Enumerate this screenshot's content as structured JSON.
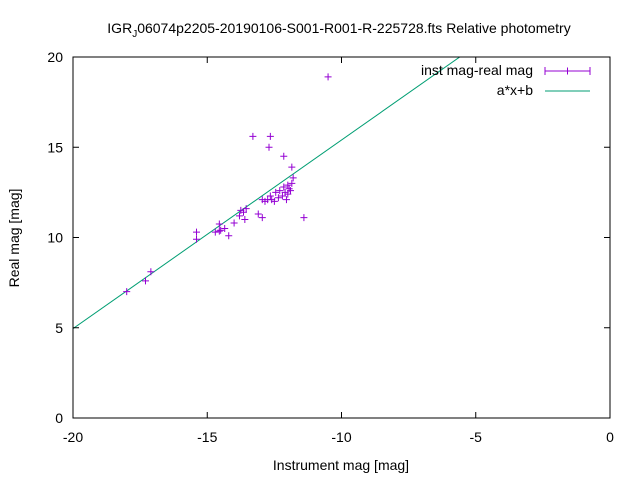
{
  "chart_data": {
    "type": "scatter",
    "title_prefix": "IGR",
    "title_subscript": "J",
    "title_suffix": "06074p2205-20190106-S001-R001-R-225728.fts Relative photometry",
    "xlabel": "Instrument mag [mag]",
    "ylabel": "Real mag [mag]",
    "xlim": [
      -20,
      0
    ],
    "ylim": [
      0,
      20
    ],
    "x_ticks": [
      -20,
      -15,
      -10,
      -5,
      0
    ],
    "y_ticks": [
      0,
      5,
      10,
      15,
      20
    ],
    "grid": false,
    "legend_position": "top-right",
    "series": [
      {
        "name": "inst mag-real mag",
        "kind": "points",
        "color": "#9400d3",
        "points": [
          [
            -18.0,
            7.0
          ],
          [
            -17.3,
            7.6
          ],
          [
            -17.1,
            8.1
          ],
          [
            -15.4,
            9.9
          ],
          [
            -15.4,
            10.3
          ],
          [
            -14.7,
            10.3
          ],
          [
            -14.55,
            10.35
          ],
          [
            -14.5,
            10.4
          ],
          [
            -14.55,
            10.75
          ],
          [
            -14.35,
            10.5
          ],
          [
            -14.2,
            10.1
          ],
          [
            -14.0,
            10.8
          ],
          [
            -13.8,
            11.2
          ],
          [
            -13.75,
            11.5
          ],
          [
            -13.65,
            11.4
          ],
          [
            -13.6,
            11.0
          ],
          [
            -13.55,
            11.6
          ],
          [
            -13.3,
            15.6
          ],
          [
            -13.1,
            11.3
          ],
          [
            -12.95,
            11.1
          ],
          [
            -12.95,
            12.1
          ],
          [
            -12.85,
            12.0
          ],
          [
            -12.75,
            12.1
          ],
          [
            -12.7,
            15.0
          ],
          [
            -12.65,
            15.6
          ],
          [
            -12.65,
            12.3
          ],
          [
            -12.6,
            12.1
          ],
          [
            -12.5,
            12.0
          ],
          [
            -12.45,
            12.5
          ],
          [
            -12.35,
            12.2
          ],
          [
            -12.3,
            12.6
          ],
          [
            -12.2,
            12.3
          ],
          [
            -12.15,
            14.5
          ],
          [
            -12.15,
            12.8
          ],
          [
            -12.1,
            12.5
          ],
          [
            -12.05,
            12.1
          ],
          [
            -12.0,
            12.4
          ],
          [
            -12.0,
            12.9
          ],
          [
            -11.95,
            12.7
          ],
          [
            -11.9,
            12.6
          ],
          [
            -11.85,
            13.0
          ],
          [
            -11.8,
            13.3
          ],
          [
            -11.85,
            13.9
          ],
          [
            -11.4,
            11.1
          ],
          [
            -10.5,
            18.9
          ]
        ]
      },
      {
        "name": "a*x+b",
        "kind": "line",
        "color": "#009e73",
        "slope": 1.045,
        "intercept": 25.85
      }
    ]
  }
}
